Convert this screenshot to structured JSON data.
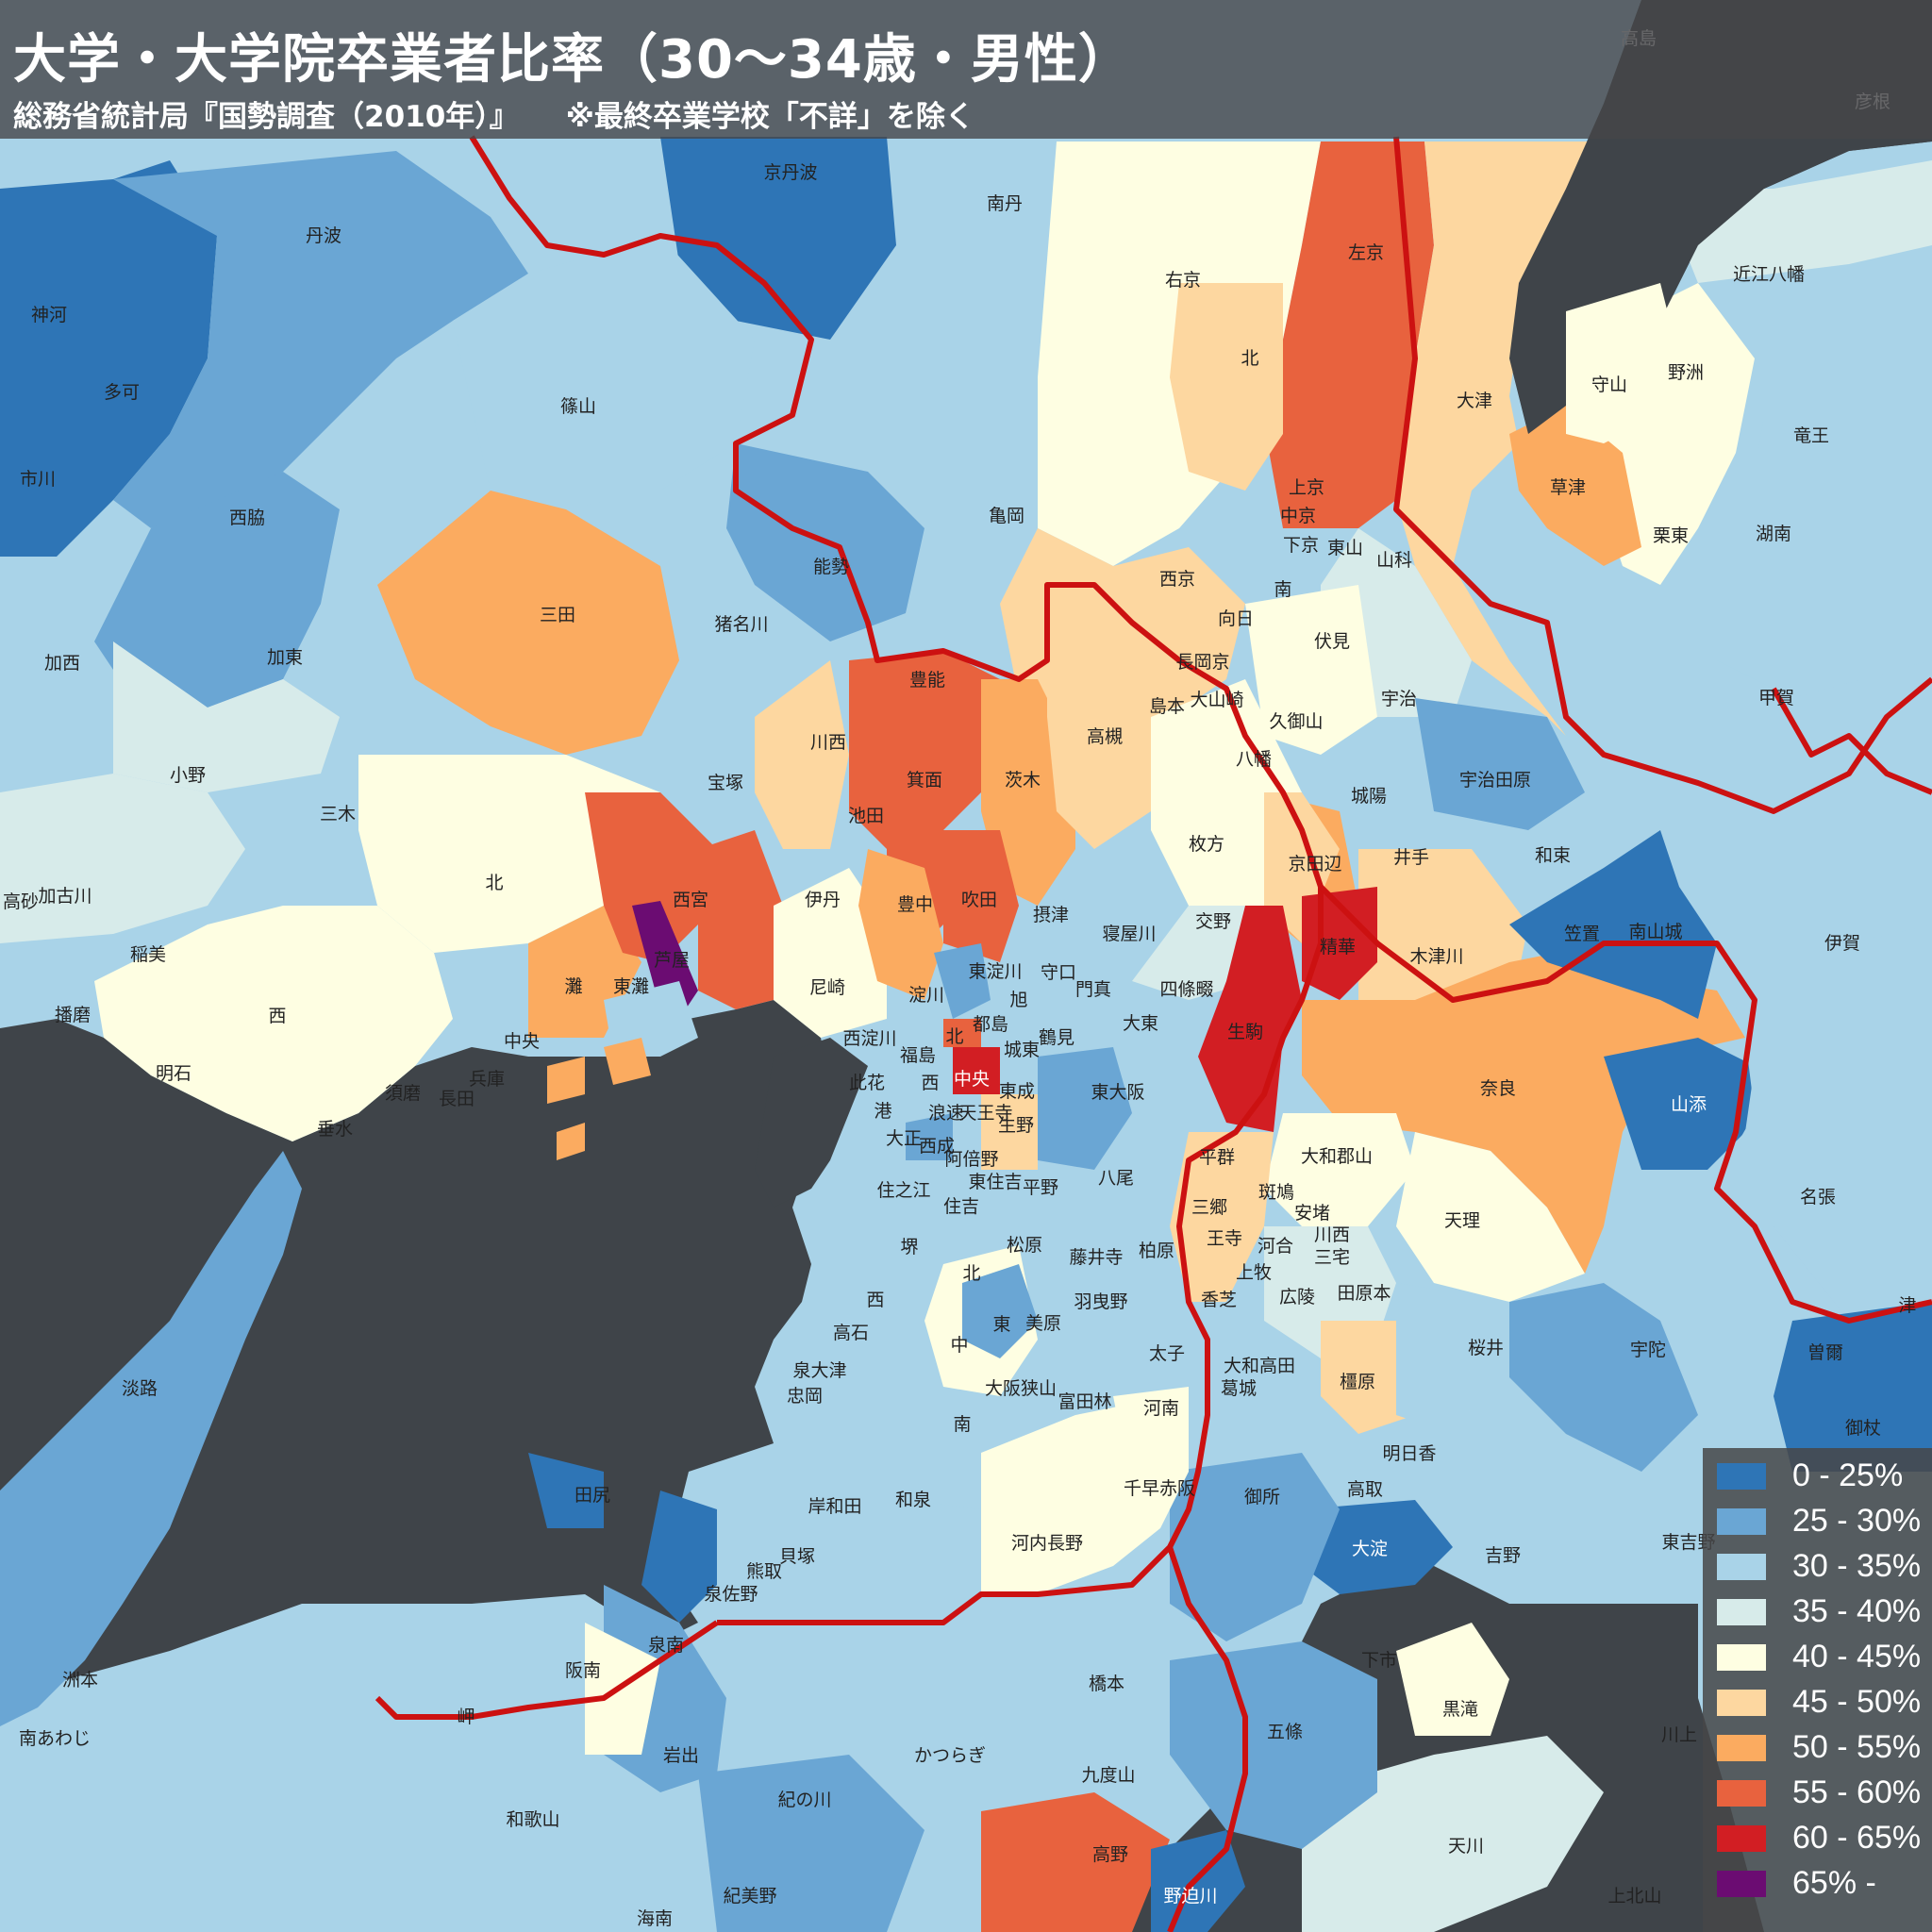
{
  "title": "大学・大学院卒業者比率（30〜34歳・男性）",
  "subtitle": "総務省統計局『国勢調査（2010年）』",
  "note": "※最終卒業学校「不詳」を除く",
  "colors": {
    "sea": "#3f4449",
    "boundary": "#cc1111",
    "c0": "#2e75b6",
    "c1": "#6aa6d4",
    "c2": "#a9d3e8",
    "c3": "#d7ebea",
    "c4": "#fefee2",
    "c5": "#fdd7a0",
    "c6": "#fbab60",
    "c7": "#e8623e",
    "c8": "#d21e23",
    "c9": "#6b0c72"
  },
  "legend": [
    {
      "label": "0 - 25%",
      "color": "#2e75b6"
    },
    {
      "label": "25 - 30%",
      "color": "#6aa6d4"
    },
    {
      "label": "30 - 35%",
      "color": "#a9d3e8"
    },
    {
      "label": "35 - 40%",
      "color": "#d7ebea"
    },
    {
      "label": "40 - 45%",
      "color": "#fefee2"
    },
    {
      "label": "45 - 50%",
      "color": "#fdd7a0"
    },
    {
      "label": "50 - 55%",
      "color": "#fbab60"
    },
    {
      "label": "55 - 60%",
      "color": "#e8623e"
    },
    {
      "label": "60 - 65%",
      "color": "#d21e23"
    },
    {
      "label": "65% -",
      "color": "#6b0c72"
    }
  ],
  "labels": {
    "l0": "京丹波",
    "l1": "南丹",
    "l2": "丹波",
    "l3": "神河",
    "l4": "多可",
    "l5": "市川",
    "l6": "篠山",
    "l7": "西脇",
    "l8": "亀岡",
    "l9": "能勢",
    "l10": "右京",
    "l11": "左京",
    "l12": "北",
    "l13": "大津",
    "l14": "守山",
    "l15": "野洲",
    "l16": "竜王",
    "l17": "近江八幡",
    "l18": "草津",
    "l19": "栗東",
    "l20": "湖南",
    "l21": "上京",
    "l22": "中京",
    "l23": "下京",
    "l24": "東山",
    "l25": "山科",
    "l26": "西京",
    "l27": "向日",
    "l28": "南",
    "l29": "伏見",
    "l30": "三田",
    "l31": "猪名川",
    "l32": "加西",
    "l33": "加東",
    "l34": "長岡京",
    "l35": "宇治",
    "l36": "島本",
    "l37": "大山崎",
    "l38": "久御山",
    "l39": "豊能",
    "l40": "川西",
    "l41": "高槻",
    "l42": "甲賀",
    "l43": "小野",
    "l44": "三木",
    "l45": "宝塚",
    "l46": "箕面",
    "l47": "茨木",
    "l48": "八幡",
    "l49": "城陽",
    "l50": "宇治田原",
    "l51": "池田",
    "l52": "枚方",
    "l53": "京田辺",
    "l54": "井手",
    "l55": "和束",
    "l56": "高砂",
    "l57": "加古川",
    "l58": "北",
    "l59": "西宮",
    "l60": "伊丹",
    "l61": "豊中",
    "l62": "吹田",
    "l63": "摂津",
    "l64": "寝屋川",
    "l65": "交野",
    "l66": "笠置",
    "l67": "南山城",
    "l68": "伊賀",
    "l69": "稲美",
    "l70": "芦屋",
    "l71": "精華",
    "l72": "木津川",
    "l73": "灘",
    "l74": "東灘",
    "l75": "尼崎",
    "l76": "淀川",
    "l77": "東淀川",
    "l78": "守口",
    "l79": "旭",
    "l80": "門真",
    "l81": "四條畷",
    "l82": "播磨",
    "l83": "西",
    "l84": "中央",
    "l85": "西淀川",
    "l86": "北",
    "l87": "都島",
    "l88": "鶴見",
    "l89": "大東",
    "l90": "生駒",
    "l91": "城東",
    "l92": "奈良",
    "l93": "福島",
    "l94": "明石",
    "l95": "兵庫",
    "l96": "須磨",
    "l97": "長田",
    "l98": "此花",
    "l99": "西",
    "l100": "中央",
    "l101": "東成",
    "l102": "東大阪",
    "l103": "港",
    "l104": "浪速",
    "l105": "天王寺",
    "l106": "生野",
    "l107": "垂水",
    "l108": "山添",
    "l109": "大正",
    "l110": "西成",
    "l111": "阿倍野",
    "l112": "平群",
    "l113": "大和郡山",
    "l114": "東住吉",
    "l115": "平野",
    "l116": "八尾",
    "l117": "住之江",
    "l118": "住吉",
    "l119": "三郷",
    "l120": "斑鳩",
    "l121": "安堵",
    "l122": "天理",
    "l123": "名張",
    "l124": "堺",
    "l125": "松原",
    "l126": "藤井寺",
    "l127": "柏原",
    "l128": "王寺",
    "l129": "河合",
    "l130": "川西",
    "l131": "三宅",
    "l132": "北",
    "l133": "上牧",
    "l134": "西",
    "l135": "羽曳野",
    "l136": "香芝",
    "l137": "広陵",
    "l138": "田原本",
    "l139": "津",
    "l140": "東",
    "l141": "美原",
    "l142": "桜井",
    "l143": "宇陀",
    "l144": "曽爾",
    "l145": "高石",
    "l146": "中",
    "l147": "太子",
    "l148": "大和高田",
    "l149": "泉大津",
    "l150": "忠岡",
    "l151": "大阪狭山",
    "l152": "富田林",
    "l153": "河南",
    "l154": "葛城",
    "l155": "橿原",
    "l156": "淡路",
    "l157": "南",
    "l158": "御杖",
    "l159": "明日香",
    "l160": "岸和田",
    "l161": "和泉",
    "l162": "千早赤阪",
    "l163": "御所",
    "l164": "高取",
    "l165": "田尻",
    "l166": "河内長野",
    "l167": "大淀",
    "l168": "吉野",
    "l169": "東吉野",
    "l170": "貝塚",
    "l171": "熊取",
    "l172": "泉佐野",
    "l173": "泉南",
    "l174": "阪南",
    "l175": "橋本",
    "l176": "下市",
    "l177": "黒滝",
    "l178": "洲本",
    "l179": "岬",
    "l180": "五條",
    "l181": "川上",
    "l182": "南あわじ",
    "l183": "岩出",
    "l184": "かつらぎ",
    "l185": "九度山",
    "l186": "紀の川",
    "l187": "和歌山",
    "l188": "高野",
    "l189": "天川",
    "l190": "紀美野",
    "l191": "野迫川",
    "l192": "上北山",
    "l193": "海南",
    "l194": "高島",
    "l195": "彦根"
  }
}
